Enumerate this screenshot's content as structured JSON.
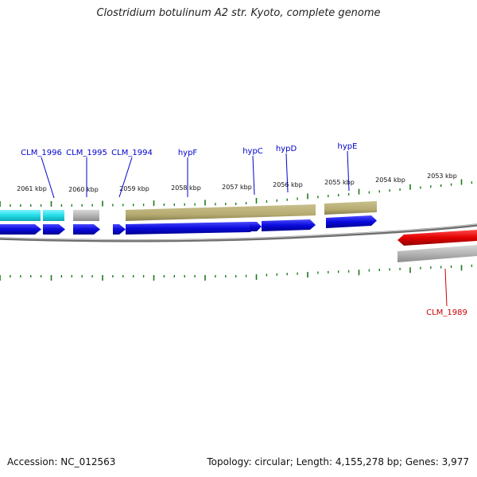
{
  "title": "Clostridium botulinum A2 str. Kyoto, complete genome",
  "footer": {
    "accession": "Accession: NC_012563",
    "topology": "Topology: circular; Length: 4,155,278 bp; Genes: 3,977"
  },
  "colors": {
    "blue": "#0a0adc",
    "cyan": "#22dde8",
    "olive": "#b6ac72",
    "grey": "#b4b4b4",
    "red": "#e00000",
    "ticks": "#1a7a1a",
    "backbone": "#7a7a7a"
  },
  "ticks": [
    {
      "label": "2061 kbp"
    },
    {
      "label": "2060 kbp"
    },
    {
      "label": "2059 kbp"
    },
    {
      "label": "2058 kbp"
    },
    {
      "label": "2057 kbp"
    },
    {
      "label": "2056 kbp"
    },
    {
      "label": "2055 kbp"
    },
    {
      "label": "2054 kbp"
    },
    {
      "label": "2053 kbp"
    }
  ],
  "genes": [
    {
      "name": "CLM_1996",
      "strand": "forward"
    },
    {
      "name": "CLM_1995",
      "strand": "forward"
    },
    {
      "name": "CLM_1994",
      "strand": "forward"
    },
    {
      "name": "hypF",
      "strand": "forward"
    },
    {
      "name": "hypC",
      "strand": "forward"
    },
    {
      "name": "hypD",
      "strand": "forward"
    },
    {
      "name": "hypE",
      "strand": "forward"
    },
    {
      "name": "CLM_1989",
      "strand": "reverse"
    }
  ]
}
